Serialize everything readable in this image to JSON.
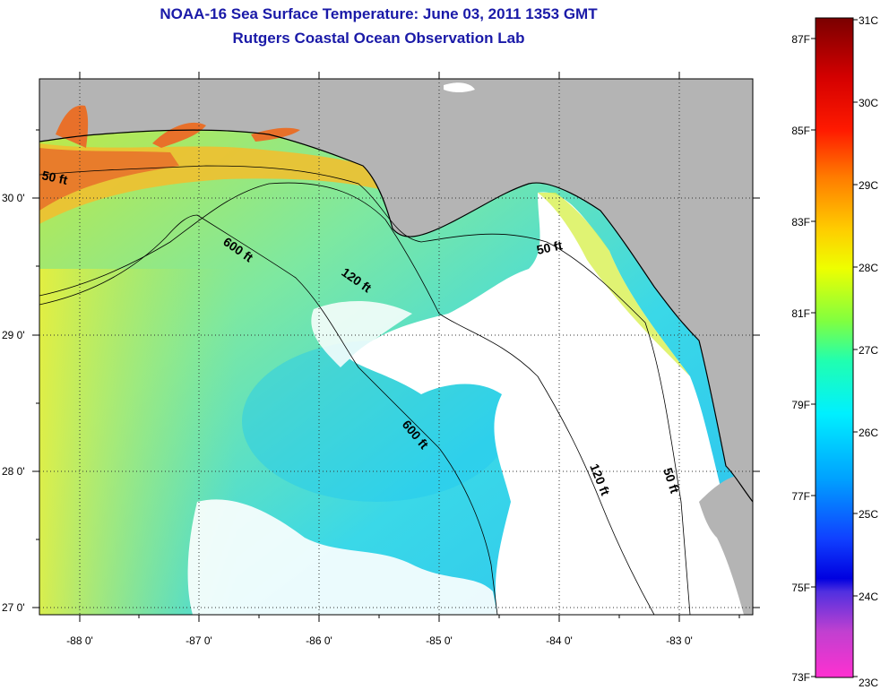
{
  "header": {
    "title": "NOAA-16 Sea Surface Temperature:  June 03, 2011 1353 GMT",
    "subtitle": "Rutgers Coastal Ocean Observation Lab"
  },
  "map": {
    "lon_ticks": [
      "-88 0'",
      "-87 0'",
      "-86 0'",
      "-85 0'",
      "-84 0'",
      "-83 0'"
    ],
    "lat_ticks": [
      "30 0'",
      "29 0'",
      "28 0'",
      "27 0'"
    ],
    "contour_labels": [
      "50 ft",
      "600 ft",
      "120 ft",
      "50 ft",
      "600 ft",
      "120 ft",
      "50 ft"
    ],
    "colors": {
      "land": "#b4b4b4",
      "cloud": "#ffffff",
      "coastline": "#000000"
    }
  },
  "colorbar": {
    "celsius": [
      "31C",
      "30C",
      "29C",
      "28C",
      "27C",
      "26C",
      "25C",
      "24C",
      "23C"
    ],
    "fahrenheit": [
      "87F",
      "85F",
      "83F",
      "81F",
      "79F",
      "77F",
      "75F",
      "73F"
    ]
  }
}
